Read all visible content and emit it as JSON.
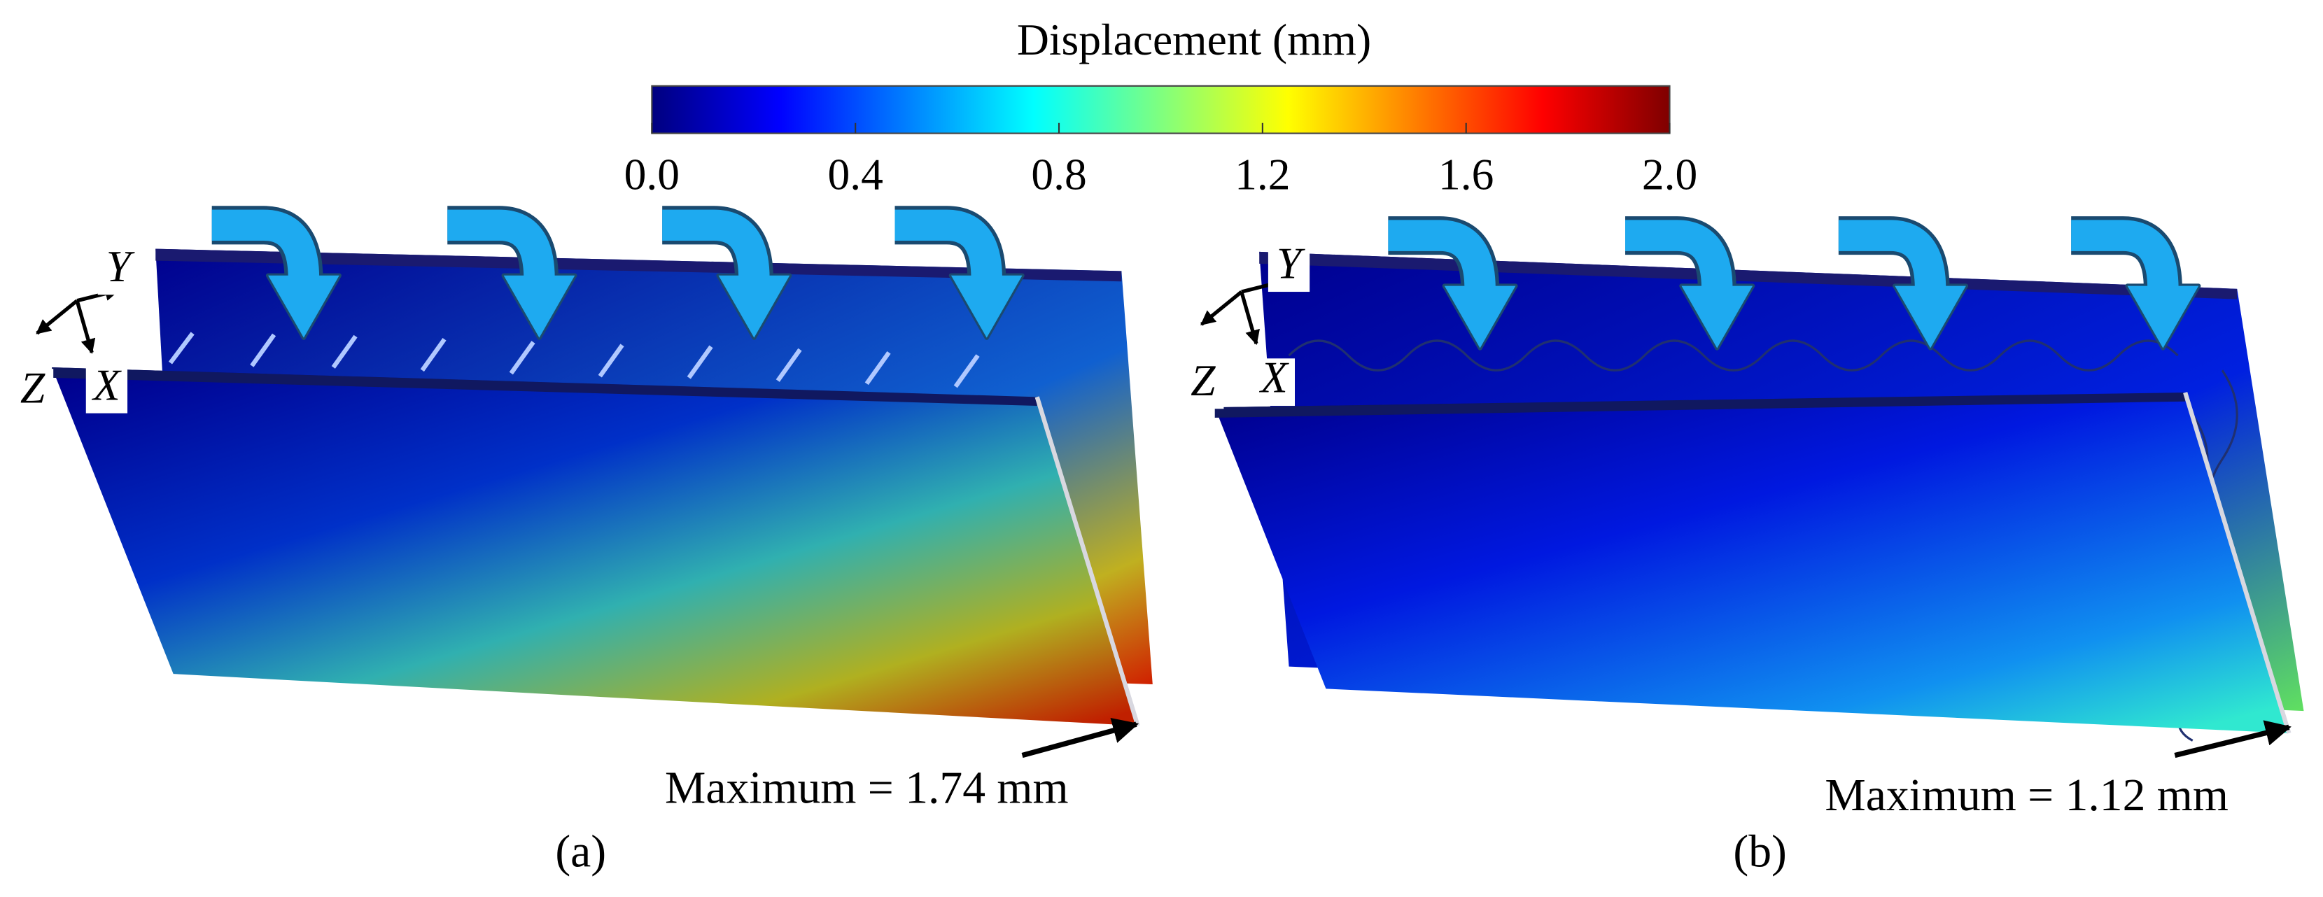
{
  "colorbar": {
    "title": "Displacement (mm)",
    "lim": [
      0,
      2
    ],
    "colormap": "jet",
    "ticks": [
      {
        "value": 0,
        "label": "0.0"
      },
      {
        "value": 0.4,
        "label": "0.4"
      },
      {
        "value": 0.8,
        "label": "0.8"
      },
      {
        "value": 1.2,
        "label": "1.2"
      },
      {
        "value": 1.6,
        "label": "1.6"
      },
      {
        "value": 2,
        "label": "2.0"
      }
    ]
  },
  "panels": [
    {
      "label": "(a)",
      "maximum": "Maximum = 1.74 mm",
      "axes": {
        "y": "Y",
        "z": "Z",
        "x": "X"
      }
    },
    {
      "label": "(b)",
      "maximum": "Maximum = 1.12 mm",
      "axes": {
        "y": "Y",
        "z": "Z",
        "x": "X"
      }
    }
  ]
}
